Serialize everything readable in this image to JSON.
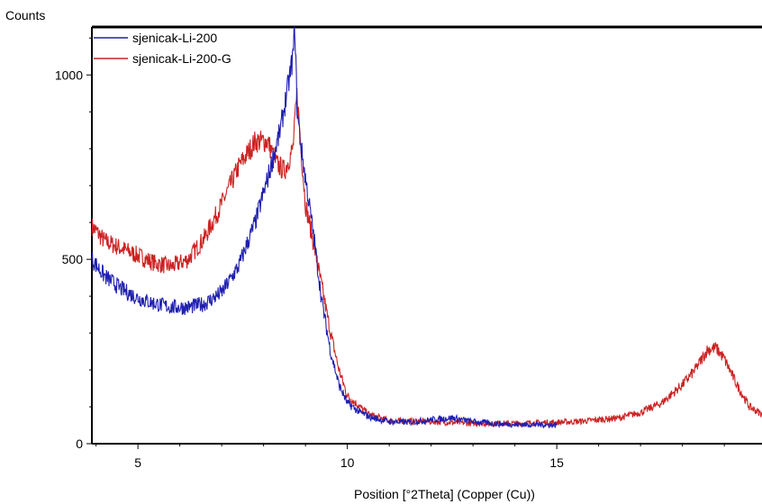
{
  "chart_data": {
    "type": "line",
    "ylabel": "Counts",
    "xlabel": "Position [°2Theta] (Copper (Cu))",
    "xlim": [
      3.9,
      19.9
    ],
    "ylim": [
      0,
      1130
    ],
    "x_ticks": [
      5,
      10,
      15
    ],
    "y_ticks": [
      0,
      500,
      1000
    ],
    "grid": false,
    "legend_position": "top-left",
    "series": [
      {
        "name": "sjenicak-Li-200",
        "color": "#1f1fb0",
        "x": [
          3.9,
          4.2,
          4.6,
          5.0,
          5.4,
          5.8,
          6.2,
          6.6,
          7.0,
          7.4,
          7.8,
          8.1,
          8.4,
          8.6,
          8.7,
          8.75,
          8.8,
          8.9,
          9.0,
          9.2,
          9.4,
          9.6,
          9.8,
          10.0,
          10.3,
          10.6,
          11.0,
          11.5,
          12.0,
          12.5,
          13.0,
          13.5,
          14.0,
          14.5,
          15.0
        ],
        "y": [
          500,
          455,
          420,
          395,
          380,
          370,
          370,
          380,
          410,
          480,
          600,
          720,
          850,
          980,
          1050,
          1130,
          900,
          800,
          720,
          560,
          380,
          250,
          160,
          110,
          85,
          70,
          60,
          58,
          65,
          70,
          60,
          55,
          52,
          52,
          50
        ]
      },
      {
        "name": "sjenicak-Li-200-G",
        "color": "#cc2222",
        "x": [
          3.9,
          4.2,
          4.6,
          5.0,
          5.4,
          5.8,
          6.2,
          6.6,
          7.0,
          7.4,
          7.8,
          8.1,
          8.3,
          8.5,
          8.7,
          8.8,
          8.9,
          9.0,
          9.2,
          9.4,
          9.6,
          9.8,
          10.0,
          10.5,
          11.0,
          12.0,
          13.0,
          14.0,
          15.0,
          15.5,
          16.0,
          16.5,
          17.0,
          17.5,
          18.0,
          18.3,
          18.6,
          18.8,
          19.0,
          19.3,
          19.6,
          19.9
        ],
        "y": [
          590,
          550,
          530,
          510,
          490,
          480,
          500,
          560,
          650,
          750,
          820,
          820,
          760,
          740,
          800,
          950,
          790,
          650,
          540,
          420,
          300,
          200,
          130,
          80,
          62,
          60,
          55,
          55,
          58,
          60,
          65,
          70,
          85,
          110,
          160,
          200,
          255,
          260,
          230,
          160,
          100,
          80
        ]
      }
    ]
  }
}
